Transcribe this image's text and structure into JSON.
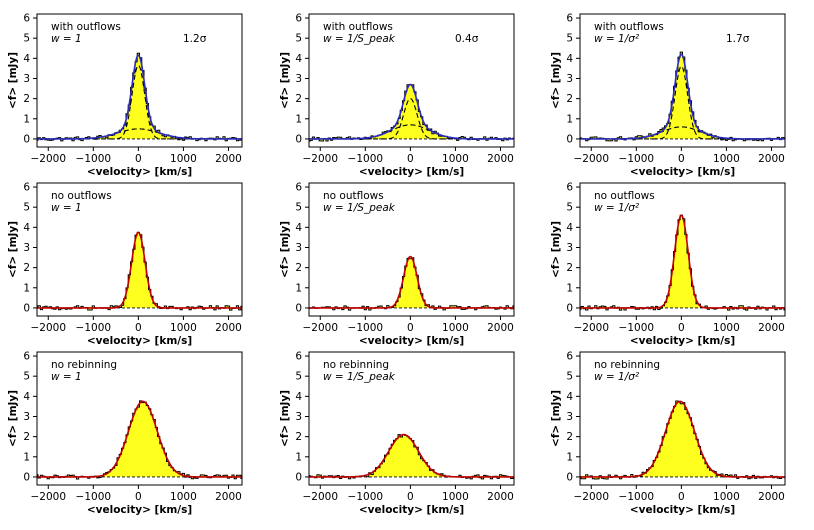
{
  "figure": {
    "xlabel": "<velocity> [km/s]",
    "ylabel": "<f> [mJy]"
  },
  "chart_data": [
    {
      "type": "line",
      "row": 0,
      "col": 0,
      "line1": "with outflows",
      "line2": "w = 1",
      "sigma": "1.2σ",
      "outflows": true,
      "xlim": [
        -2250,
        2300
      ],
      "ylim": [
        -0.4,
        6.2
      ],
      "xticks": [
        -2000,
        -1000,
        0,
        1000,
        2000
      ],
      "yticks": [
        0,
        1,
        2,
        3,
        4,
        5,
        6
      ],
      "narrow": {
        "amp": 3.65,
        "center": 0,
        "sigma": 140
      },
      "broad": {
        "amp": 0.5,
        "center": 0,
        "sigma": 450
      },
      "fit_color": "#2b2bbf"
    },
    {
      "type": "line",
      "row": 0,
      "col": 1,
      "line1": "with outflows",
      "line2": "w = 1/S_peak",
      "sigma": "0.4σ",
      "outflows": true,
      "xlim": [
        -2250,
        2300
      ],
      "ylim": [
        -0.4,
        6.2
      ],
      "xticks": [
        -2000,
        -1000,
        0,
        1000,
        2000
      ],
      "yticks": [
        0,
        1,
        2,
        3,
        4,
        5,
        6
      ],
      "narrow": {
        "amp": 2.0,
        "center": 0,
        "sigma": 150
      },
      "broad": {
        "amp": 0.7,
        "center": 0,
        "sigma": 420
      },
      "fit_color": "#2b2bbf"
    },
    {
      "type": "line",
      "row": 0,
      "col": 2,
      "line1": "with outflows",
      "line2": "w = 1/σ²",
      "sigma": "1.7σ",
      "outflows": true,
      "xlim": [
        -2250,
        2300
      ],
      "ylim": [
        -0.4,
        6.2
      ],
      "xticks": [
        -2000,
        -1000,
        0,
        1000,
        2000
      ],
      "yticks": [
        0,
        1,
        2,
        3,
        4,
        5,
        6
      ],
      "narrow": {
        "amp": 3.6,
        "center": 0,
        "sigma": 140
      },
      "broad": {
        "amp": 0.6,
        "center": 0,
        "sigma": 420
      },
      "fit_color": "#2b2bbf"
    },
    {
      "type": "line",
      "row": 1,
      "col": 0,
      "line1": "no outflows",
      "line2": "w = 1",
      "sigma": "",
      "outflows": false,
      "xlim": [
        -2250,
        2300
      ],
      "ylim": [
        -0.4,
        6.2
      ],
      "xticks": [
        -2000,
        -1000,
        0,
        1000,
        2000
      ],
      "yticks": [
        0,
        1,
        2,
        3,
        4,
        5,
        6
      ],
      "narrow": {
        "amp": 3.75,
        "center": 0,
        "sigma": 150
      },
      "fit_color": "#c00000"
    },
    {
      "type": "line",
      "row": 1,
      "col": 1,
      "line1": "no outflows",
      "line2": "w = 1/S_peak",
      "sigma": "",
      "outflows": false,
      "xlim": [
        -2250,
        2300
      ],
      "ylim": [
        -0.4,
        6.2
      ],
      "xticks": [
        -2000,
        -1000,
        0,
        1000,
        2000
      ],
      "yticks": [
        0,
        1,
        2,
        3,
        4,
        5,
        6
      ],
      "narrow": {
        "amp": 2.55,
        "center": 0,
        "sigma": 150
      },
      "fit_color": "#c00000"
    },
    {
      "type": "line",
      "row": 1,
      "col": 2,
      "line1": "no outflows",
      "line2": "w = 1/σ²",
      "sigma": "",
      "outflows": false,
      "xlim": [
        -2250,
        2300
      ],
      "ylim": [
        -0.4,
        6.2
      ],
      "xticks": [
        -2000,
        -1000,
        0,
        1000,
        2000
      ],
      "yticks": [
        0,
        1,
        2,
        3,
        4,
        5,
        6
      ],
      "narrow": {
        "amp": 4.6,
        "center": 0,
        "sigma": 150
      },
      "fit_color": "#c00000"
    },
    {
      "type": "line",
      "row": 2,
      "col": 0,
      "line1": "no rebinning",
      "line2": "w = 1",
      "sigma": "",
      "outflows": false,
      "xlim": [
        -2250,
        2300
      ],
      "ylim": [
        -0.4,
        6.2
      ],
      "xticks": [
        -2000,
        -1000,
        0,
        1000,
        2000
      ],
      "yticks": [
        0,
        1,
        2,
        3,
        4,
        5,
        6
      ],
      "narrow": {
        "amp": 3.75,
        "center": 100,
        "sigma": 320
      },
      "fit_color": "#c00000"
    },
    {
      "type": "line",
      "row": 2,
      "col": 1,
      "line1": "no rebinning",
      "line2": "w = 1/S_peak",
      "sigma": "",
      "outflows": false,
      "xlim": [
        -2250,
        2300
      ],
      "ylim": [
        -0.4,
        6.2
      ],
      "xticks": [
        -2000,
        -1000,
        0,
        1000,
        2000
      ],
      "yticks": [
        0,
        1,
        2,
        3,
        4,
        5,
        6
      ],
      "narrow": {
        "amp": 2.1,
        "center": -150,
        "sigma": 330
      },
      "fit_color": "#c00000"
    },
    {
      "type": "line",
      "row": 2,
      "col": 2,
      "line1": "no rebinning",
      "line2": "w = 1/σ²",
      "sigma": "",
      "outflows": false,
      "xlim": [
        -2250,
        2300
      ],
      "ylim": [
        -0.4,
        6.2
      ],
      "xticks": [
        -2000,
        -1000,
        0,
        1000,
        2000
      ],
      "yticks": [
        0,
        1,
        2,
        3,
        4,
        5,
        6
      ],
      "narrow": {
        "amp": 3.75,
        "center": -30,
        "sigma": 320
      },
      "fit_color": "#c00000"
    }
  ]
}
